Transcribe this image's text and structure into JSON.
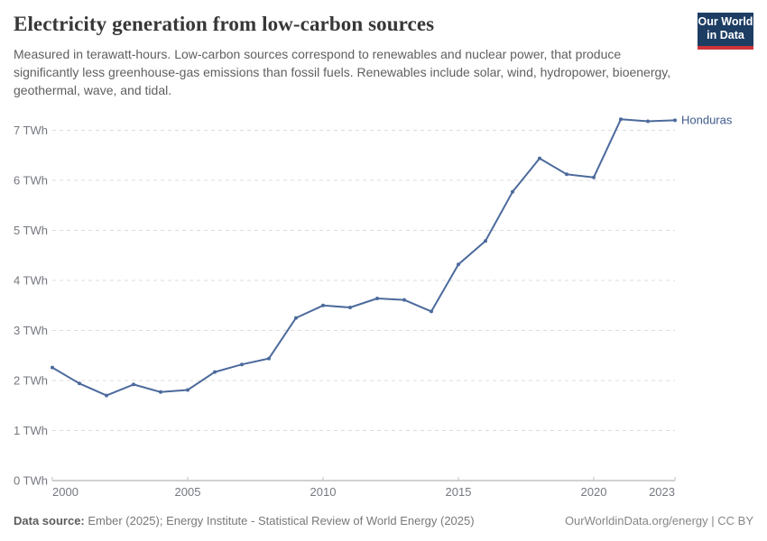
{
  "header": {
    "title": "Electricity generation from low-carbon sources",
    "subtitle": "Measured in terawatt-hours. Low-carbon sources correspond to renewables and nuclear power, that produce significantly less greenhouse-gas emissions than fossil fuels. Renewables include solar, wind, hydropower, bioenergy, geothermal, wave, and tidal.",
    "logo": {
      "line1": "Our World",
      "line2": "in Data",
      "bg_color": "#1d3d63",
      "bar_color": "#d0333b"
    }
  },
  "chart_data": {
    "type": "line",
    "title": "Electricity generation from low-carbon sources",
    "xlabel": "",
    "ylabel": "TWh",
    "xlim": [
      2000,
      2023
    ],
    "ylim": [
      0,
      7
    ],
    "grid": "horizontal-dashed",
    "legend_position": "end-of-line-label",
    "x_ticks": [
      {
        "value": 2000,
        "label": "2000"
      },
      {
        "value": 2005,
        "label": "2005"
      },
      {
        "value": 2010,
        "label": "2010"
      },
      {
        "value": 2015,
        "label": "2015"
      },
      {
        "value": 2020,
        "label": "2020"
      },
      {
        "value": 2023,
        "label": "2023"
      }
    ],
    "y_ticks": [
      {
        "value": 0,
        "label": "0 TWh"
      },
      {
        "value": 1,
        "label": "1 TWh"
      },
      {
        "value": 2,
        "label": "2 TWh"
      },
      {
        "value": 3,
        "label": "3 TWh"
      },
      {
        "value": 4,
        "label": "4 TWh"
      },
      {
        "value": 5,
        "label": "5 TWh"
      },
      {
        "value": 6,
        "label": "6 TWh"
      },
      {
        "value": 7,
        "label": "7 TWh"
      }
    ],
    "series": [
      {
        "name": "Honduras",
        "color": "#4c6a9c",
        "label_color": "#3d5a8c",
        "x": [
          2000,
          2001,
          2002,
          2003,
          2004,
          2005,
          2006,
          2007,
          2008,
          2009,
          2010,
          2011,
          2012,
          2013,
          2014,
          2015,
          2016,
          2017,
          2018,
          2019,
          2020,
          2021,
          2022,
          2023
        ],
        "values": [
          2.26,
          1.94,
          1.7,
          1.92,
          1.77,
          1.81,
          2.17,
          2.32,
          2.44,
          3.25,
          3.5,
          3.46,
          3.64,
          3.61,
          3.38,
          4.32,
          4.79,
          5.77,
          6.44,
          6.12,
          6.06,
          7.22,
          7.18,
          7.2
        ]
      }
    ],
    "colors": {
      "gridline": "#dcdcdc",
      "axis": "#a3a3a3",
      "tick": "#c2c2c2",
      "tick_label": "#757880"
    }
  },
  "footer": {
    "datasource_label": "Data source:",
    "datasource_text": " Ember (2025); Energy Institute - Statistical Review of World Energy (2025)",
    "credit": "OurWorldinData.org/energy | CC BY"
  }
}
